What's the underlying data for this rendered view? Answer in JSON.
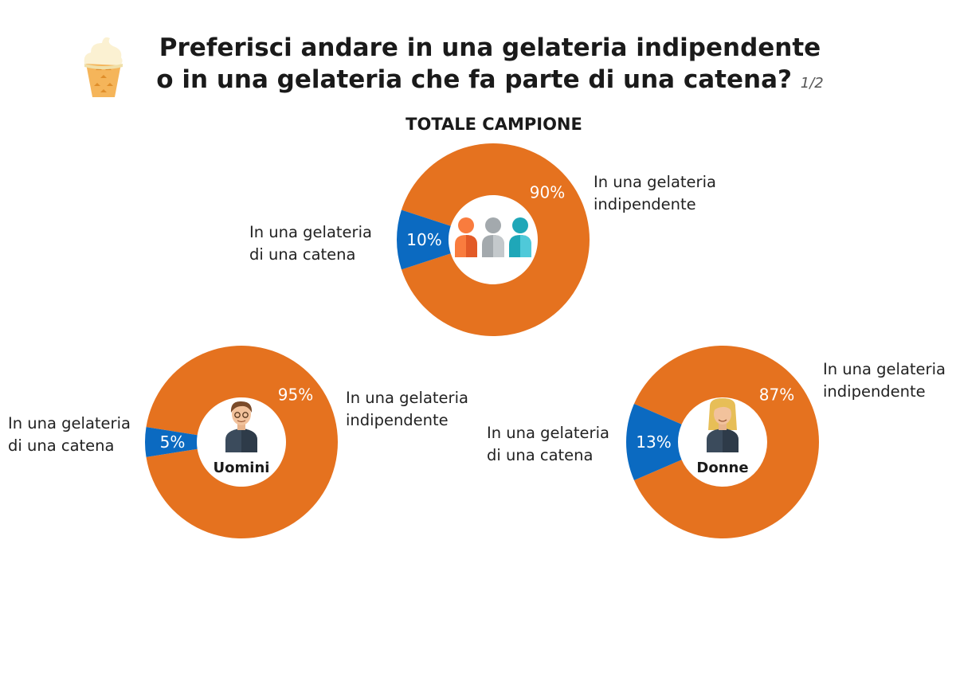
{
  "header": {
    "title_line1": "Preferisci andare in una gelateria indipendente",
    "title_line2": "o in una gelateria che fa parte di una catena?",
    "page_indicator": "1/2",
    "icon": "ice-cream-cone-icon"
  },
  "colors": {
    "independent": "#E5721F",
    "chain": "#0B6AC1"
  },
  "chart_data": [
    {
      "type": "pie",
      "title": "TOTALE CAMPIONE",
      "center_label": "",
      "center_icon": "group-people-icon",
      "categories": [
        "In una gelateria indipendente",
        "In una gelateria di una catena"
      ],
      "labels": {
        "independent": [
          "In una gelateria",
          "indipendente"
        ],
        "chain": [
          "In una gelateria",
          "di una catena"
        ]
      },
      "values": [
        90,
        10
      ],
      "value_labels": [
        "90%",
        "10%"
      ]
    },
    {
      "type": "pie",
      "title": "",
      "center_label": "Uomini",
      "center_icon": "man-avatar-icon",
      "categories": [
        "In una gelateria indipendente",
        "In una gelateria di una catena"
      ],
      "labels": {
        "independent": [
          "In una gelateria",
          "indipendente"
        ],
        "chain": [
          "In una gelateria",
          "di una catena"
        ]
      },
      "values": [
        95,
        5
      ],
      "value_labels": [
        "95%",
        "5%"
      ]
    },
    {
      "type": "pie",
      "title": "",
      "center_label": "Donne",
      "center_icon": "woman-avatar-icon",
      "categories": [
        "In una gelateria indipendente",
        "In una gelateria di una catena"
      ],
      "labels": {
        "independent": [
          "In una gelateria",
          "indipendente"
        ],
        "chain": [
          "In una gelateria",
          "di una catena"
        ]
      },
      "values": [
        87,
        13
      ],
      "value_labels": [
        "87%",
        "13%"
      ]
    }
  ]
}
